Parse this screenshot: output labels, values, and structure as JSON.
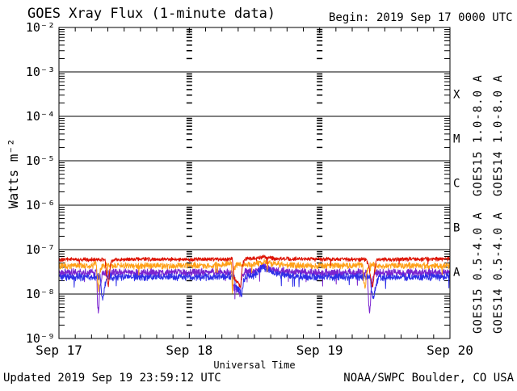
{
  "header": {
    "title": "GOES Xray Flux (1-minute data)",
    "begin_label": "Begin: 2019 Sep 17 0000 UTC"
  },
  "footer": {
    "updated": "Updated 2019 Sep 19 23:59:12 UTC",
    "credit": "NOAA/SWPC Boulder, CO USA"
  },
  "chart_data": {
    "type": "line",
    "title": "GOES Xray Flux (1-minute data)",
    "xlabel": "Universal Time",
    "ylabel": "Watts m⁻²",
    "grid": "decade horizontal lines solid; interior day boundaries shown as minor-tick dash columns",
    "x_axis": {
      "unit": "hours UTC from 2019 Sep 17 0000",
      "range_hours": [
        0,
        72
      ],
      "day_tick_labels": [
        "Sep 17",
        "Sep 18",
        "Sep 19",
        "Sep 20"
      ],
      "minor_tick_every_hours": 3
    },
    "y_axis": {
      "scale": "log10",
      "unit": "Watts m⁻²",
      "decade_exponents": [
        -2,
        -3,
        -4,
        -5,
        -6,
        -7,
        -8,
        -9
      ],
      "tick_labels": [
        "10⁻²",
        "10⁻³",
        "10⁻⁴",
        "10⁻⁵",
        "10⁻⁶",
        "10⁻⁷",
        "10⁻⁸",
        "10⁻⁹"
      ]
    },
    "flare_classes": [
      {
        "label": "X",
        "between_exponents": [
          -4,
          -3
        ]
      },
      {
        "label": "M",
        "between_exponents": [
          -5,
          -4
        ]
      },
      {
        "label": "C",
        "between_exponents": [
          -6,
          -5
        ]
      },
      {
        "label": "B",
        "between_exponents": [
          -7,
          -6
        ]
      },
      {
        "label": "A",
        "between_exponents": [
          -8,
          -7
        ]
      }
    ],
    "legend": [
      {
        "text": "GOES15 1.0-8.0 A",
        "color": "#dd1100"
      },
      {
        "text": "GOES14 1.0-8.0 A",
        "color": "#ffa018"
      },
      {
        "text": "GOES15 0.5-4.0 A",
        "color": "#2f2fe8"
      },
      {
        "text": "GOES14 0.5-4.0 A",
        "color": "#7b24cf"
      }
    ],
    "series": [
      {
        "name": "GOES15 1.0-8.0 A",
        "color": "#dd1100",
        "noise_log_amp": 0.035,
        "points": [
          [
            0,
            6e-08
          ],
          [
            8.5,
            6e-08
          ],
          [
            8.8,
            2.5e-08
          ],
          [
            9.1,
            1.5e-08
          ],
          [
            9.35,
            3.5e-08
          ],
          [
            9.7,
            5.8e-08
          ],
          [
            14,
            6.1e-08
          ],
          [
            24,
            6e-08
          ],
          [
            31.9,
            6.1e-08
          ],
          [
            32.3,
            2.2e-08
          ],
          [
            33.0,
            1.8e-08
          ],
          [
            33.45,
            1.4e-08
          ],
          [
            33.8,
            4.5e-08
          ],
          [
            34.2,
            6.2e-08
          ],
          [
            36.5,
            6.3e-08
          ],
          [
            37.6,
            6.8e-08
          ],
          [
            39.5,
            6.3e-08
          ],
          [
            48,
            6.1e-08
          ],
          [
            56.5,
            6e-08
          ],
          [
            57.0,
            4.8e-08
          ],
          [
            57.5,
            2e-08
          ],
          [
            57.8,
            1.4e-08
          ],
          [
            58.1,
            3.5e-08
          ],
          [
            58.5,
            6e-08
          ],
          [
            66,
            6.1e-08
          ],
          [
            72,
            6.1e-08
          ]
        ]
      },
      {
        "name": "GOES14 1.0-8.0 A",
        "color": "#ffa018",
        "noise_log_amp": 0.055,
        "points": [
          [
            0,
            4.3e-08
          ],
          [
            6.3,
            4.4e-08
          ],
          [
            6.8,
            5.3e-08
          ],
          [
            7.05,
            2.5e-08
          ],
          [
            7.25,
            1.2e-08
          ],
          [
            7.5,
            3.2e-08
          ],
          [
            8.0,
            4.4e-08
          ],
          [
            20,
            4.3e-08
          ],
          [
            28.5,
            4.4e-08
          ],
          [
            31.3,
            4.8e-08
          ],
          [
            31.75,
            5.5e-08
          ],
          [
            31.95,
            1.1e-08
          ],
          [
            32.2,
            3.5e-08
          ],
          [
            32.6,
            4.6e-08
          ],
          [
            34.5,
            4.6e-08
          ],
          [
            36.0,
            4.8e-08
          ],
          [
            37.6,
            5.4e-08
          ],
          [
            39.5,
            4.8e-08
          ],
          [
            42,
            4.4e-08
          ],
          [
            48,
            4.3e-08
          ],
          [
            55.6,
            4.4e-08
          ],
          [
            55.9,
            5e-08
          ],
          [
            56.1,
            2e-08
          ],
          [
            56.35,
            1.3e-08
          ],
          [
            56.7,
            3.3e-08
          ],
          [
            57.2,
            4.4e-08
          ],
          [
            64,
            4.3e-08
          ],
          [
            72,
            4.3e-08
          ]
        ]
      },
      {
        "name": "GOES15 0.5-4.0 A",
        "color": "#2f2fe8",
        "noise_log_amp": 0.065,
        "points": [
          [
            0,
            2.4e-08
          ],
          [
            7.6,
            2.4e-08
          ],
          [
            7.85,
            1e-08
          ],
          [
            8.1,
            7e-09
          ],
          [
            8.4,
            1.5e-08
          ],
          [
            8.85,
            2.4e-08
          ],
          [
            20,
            2.4e-08
          ],
          [
            32.3,
            2.5e-08
          ],
          [
            32.6,
            1.4e-08
          ],
          [
            33.3,
            1.2e-08
          ],
          [
            33.65,
            1e-08
          ],
          [
            34.0,
            1.9e-08
          ],
          [
            34.6,
            2.6e-08
          ],
          [
            35.5,
            2.5e-08
          ],
          [
            36.5,
            3e-08
          ],
          [
            37.6,
            4.1e-08
          ],
          [
            38.6,
            3.3e-08
          ],
          [
            41,
            2.7e-08
          ],
          [
            44,
            2.5e-08
          ],
          [
            48,
            2.4e-08
          ],
          [
            57.3,
            2.4e-08
          ],
          [
            57.6,
            1.1e-08
          ],
          [
            57.95,
            8e-09
          ],
          [
            58.35,
            1.6e-08
          ],
          [
            58.8,
            2.4e-08
          ],
          [
            66,
            2.4e-08
          ],
          [
            72,
            2.5e-08
          ]
        ]
      },
      {
        "name": "GOES14 0.5-4.0 A",
        "color": "#7b24cf",
        "noise_log_amp": 0.07,
        "points": [
          [
            0,
            3e-08
          ],
          [
            6.6,
            3.1e-08
          ],
          [
            6.95,
            3.3e-08
          ],
          [
            7.1,
            6e-09
          ],
          [
            7.3,
            3.8e-09
          ],
          [
            7.55,
            1.4e-08
          ],
          [
            8.0,
            3e-08
          ],
          [
            20,
            3e-08
          ],
          [
            31.9,
            3.1e-08
          ],
          [
            32.2,
            1.4e-08
          ],
          [
            33.0,
            1.2e-08
          ],
          [
            33.3,
            9e-09
          ],
          [
            33.6,
            2.2e-08
          ],
          [
            34.3,
            3.2e-08
          ],
          [
            35.5,
            3.1e-08
          ],
          [
            36.5,
            3.5e-08
          ],
          [
            37.6,
            4.5e-08
          ],
          [
            38.6,
            3.8e-08
          ],
          [
            41,
            3.2e-08
          ],
          [
            48,
            3e-08
          ],
          [
            56.8,
            3e-08
          ],
          [
            57.0,
            7e-09
          ],
          [
            57.2,
            3.5e-09
          ],
          [
            57.55,
            1.6e-08
          ],
          [
            58.0,
            3e-08
          ],
          [
            66,
            3e-08
          ],
          [
            72,
            3e-08
          ]
        ]
      }
    ]
  }
}
